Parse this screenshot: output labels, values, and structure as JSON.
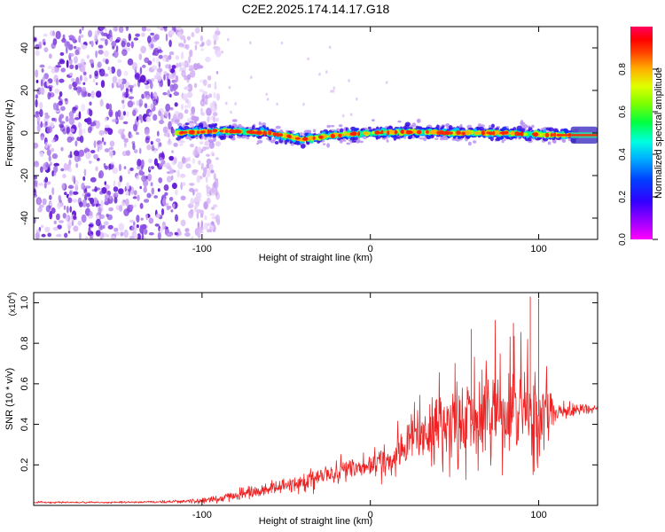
{
  "figure_title": "C2E2.2025.174.14.17.G18",
  "colors": {
    "spectrum_cmap": [
      "#ff00ff",
      "#7f00ff",
      "#0000ff",
      "#00a0ff",
      "#00ffff",
      "#00ff60",
      "#60ff00",
      "#d0ff00",
      "#ffd000",
      "#ff6000",
      "#ff0000",
      "#ff0040"
    ],
    "snr_line": "#ee2222",
    "noise_purple": "#8a2be2"
  },
  "chart_data": [
    {
      "type": "heatmap",
      "title": "",
      "xlabel": "Height of straight line (km)",
      "ylabel": "Frequency (Hz)",
      "xlim": [
        -200,
        135
      ],
      "ylim": [
        -50,
        50
      ],
      "xticks": [
        -100,
        0,
        100
      ],
      "xtick_labels": [
        "-100",
        "0",
        "100"
      ],
      "yticks": [
        -40,
        -20,
        0,
        20,
        40
      ],
      "ytick_labels": [
        "-40",
        "-20",
        "0",
        "20",
        "40"
      ],
      "colorbar": {
        "label": "Normalized spectral amplitude",
        "range": [
          0,
          1
        ],
        "ticks": [
          0.0,
          0.2,
          0.4,
          0.6,
          0.8
        ],
        "tick_labels": [
          "0.0",
          "0.2",
          "0.4",
          "0.6",
          "0.8"
        ]
      },
      "signal_band": {
        "start_height_km": -115,
        "end_height_km": 135,
        "center_freq_hz": [
          {
            "x": -115,
            "y": 0
          },
          {
            "x": -90,
            "y": 1
          },
          {
            "x": -60,
            "y": 0
          },
          {
            "x": -40,
            "y": -3
          },
          {
            "x": -20,
            "y": -1
          },
          {
            "x": 0,
            "y": 0
          },
          {
            "x": 20,
            "y": 0.5
          },
          {
            "x": 50,
            "y": 0
          },
          {
            "x": 80,
            "y": 0
          },
          {
            "x": 110,
            "y": -1
          },
          {
            "x": 135,
            "y": -1
          }
        ],
        "half_width_hz": 4
      },
      "noise_region": {
        "x_range": [
          -200,
          -90
        ],
        "dense_until_km": -115
      }
    },
    {
      "type": "line",
      "title": "",
      "xlabel": "Height of straight line (km)",
      "ylabel": "SNR (10 * v/v)",
      "y_multiplier_label": "(x10",
      "y_multiplier_exponent": "4",
      "y_multiplier_close": ")",
      "xlim": [
        -200,
        135
      ],
      "ylim": [
        0,
        1.05
      ],
      "xticks": [
        -100,
        0,
        100
      ],
      "xtick_labels": [
        "-100",
        "0",
        "100"
      ],
      "yticks": [
        0.2,
        0.4,
        0.6,
        0.8,
        1.0
      ],
      "ytick_labels": [
        "0.2",
        "0.4",
        "0.6",
        "0.8",
        "1.0"
      ],
      "series": [
        {
          "x": [
            -200,
            -150,
            -110,
            -90,
            -80,
            -60,
            -40,
            -20,
            0,
            10,
            20,
            30,
            40,
            50,
            60,
            70,
            80,
            90,
            100,
            110,
            135
          ],
          "y_mean": [
            0.015,
            0.015,
            0.02,
            0.03,
            0.05,
            0.08,
            0.12,
            0.16,
            0.2,
            0.23,
            0.28,
            0.33,
            0.38,
            0.4,
            0.42,
            0.42,
            0.43,
            0.44,
            0.44,
            0.46,
            0.48
          ],
          "y_spread": [
            0.005,
            0.005,
            0.01,
            0.02,
            0.03,
            0.04,
            0.05,
            0.06,
            0.08,
            0.1,
            0.13,
            0.18,
            0.22,
            0.25,
            0.28,
            0.3,
            0.28,
            0.3,
            0.3,
            0.06,
            0.02
          ],
          "peaks": [
            {
              "x": 60,
              "y": 0.87
            },
            {
              "x": 85,
              "y": 0.9
            },
            {
              "x": 95,
              "y": 1.03
            },
            {
              "x": 100,
              "y": 1.02
            }
          ]
        }
      ]
    }
  ]
}
